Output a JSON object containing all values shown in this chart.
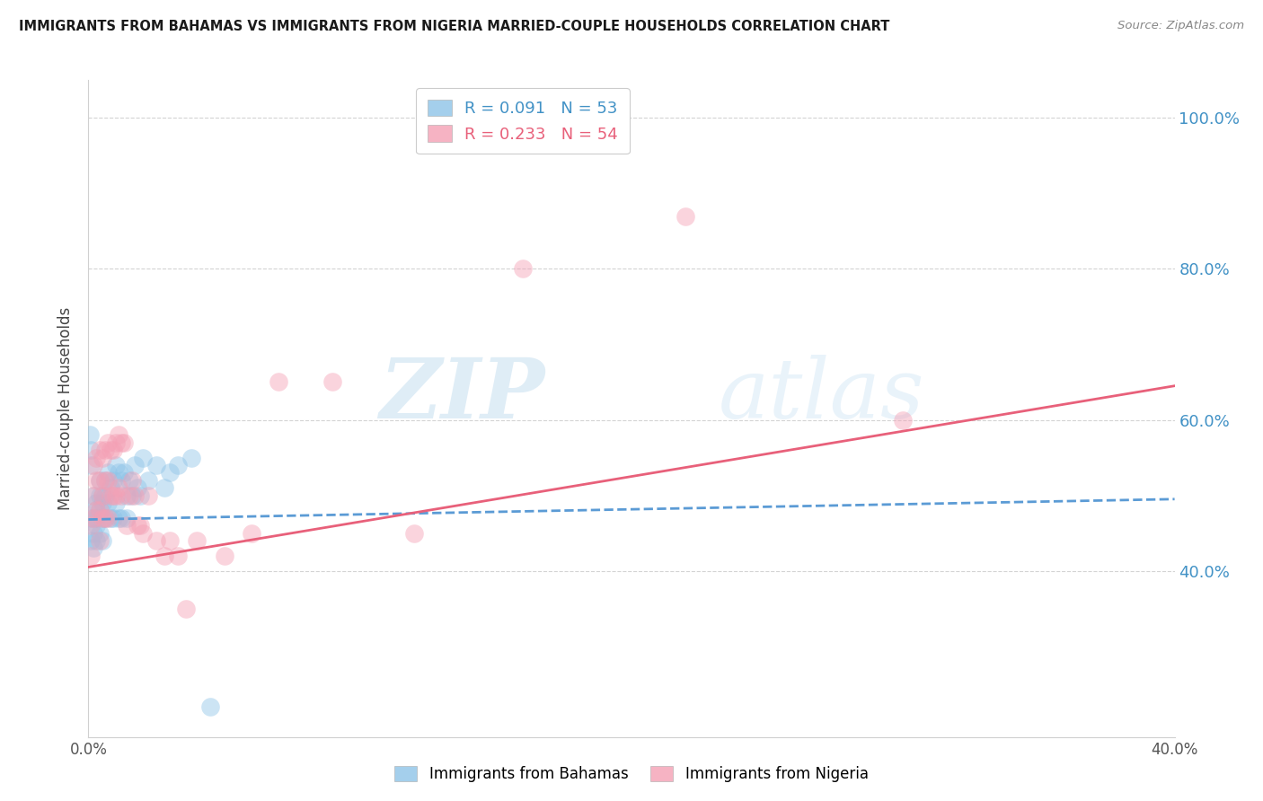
{
  "title": "IMMIGRANTS FROM BAHAMAS VS IMMIGRANTS FROM NIGERIA MARRIED-COUPLE HOUSEHOLDS CORRELATION CHART",
  "source": "Source: ZipAtlas.com",
  "ylabel": "Married-couple Households",
  "legend_label1": "Immigrants from Bahamas",
  "legend_label2": "Immigrants from Nigeria",
  "R1": 0.091,
  "N1": 53,
  "R2": 0.233,
  "N2": 54,
  "color_blue": "#8ec4e8",
  "color_pink": "#f4a0b5",
  "color_blue_line": "#5b9bd5",
  "color_pink_line": "#e8607a",
  "color_axis": "#4292c6",
  "xmin": 0.0,
  "xmax": 0.4,
  "ymin": 0.18,
  "ymax": 1.05,
  "yticks": [
    0.4,
    0.6,
    0.8,
    1.0
  ],
  "ytick_labels": [
    "40.0%",
    "60.0%",
    "80.0%",
    "100.0%"
  ],
  "bahamas_x": [
    0.0005,
    0.001,
    0.001,
    0.001,
    0.001,
    0.002,
    0.002,
    0.002,
    0.002,
    0.003,
    0.003,
    0.003,
    0.003,
    0.003,
    0.004,
    0.004,
    0.004,
    0.004,
    0.005,
    0.005,
    0.005,
    0.005,
    0.006,
    0.006,
    0.006,
    0.007,
    0.007,
    0.008,
    0.008,
    0.009,
    0.009,
    0.01,
    0.01,
    0.011,
    0.011,
    0.012,
    0.012,
    0.013,
    0.014,
    0.014,
    0.015,
    0.016,
    0.017,
    0.018,
    0.019,
    0.02,
    0.022,
    0.025,
    0.028,
    0.03,
    0.033,
    0.038,
    0.045
  ],
  "bahamas_y": [
    0.58,
    0.56,
    0.54,
    0.47,
    0.44,
    0.5,
    0.47,
    0.45,
    0.43,
    0.49,
    0.48,
    0.47,
    0.46,
    0.44,
    0.52,
    0.5,
    0.48,
    0.45,
    0.5,
    0.49,
    0.47,
    0.44,
    0.52,
    0.5,
    0.47,
    0.53,
    0.49,
    0.51,
    0.47,
    0.52,
    0.47,
    0.54,
    0.49,
    0.53,
    0.47,
    0.52,
    0.47,
    0.53,
    0.5,
    0.47,
    0.52,
    0.5,
    0.54,
    0.51,
    0.5,
    0.55,
    0.52,
    0.54,
    0.51,
    0.53,
    0.54,
    0.55,
    0.22
  ],
  "nigeria_x": [
    0.001,
    0.001,
    0.002,
    0.002,
    0.002,
    0.003,
    0.003,
    0.003,
    0.004,
    0.004,
    0.004,
    0.004,
    0.005,
    0.005,
    0.005,
    0.006,
    0.006,
    0.006,
    0.007,
    0.007,
    0.007,
    0.008,
    0.008,
    0.009,
    0.009,
    0.01,
    0.01,
    0.011,
    0.011,
    0.012,
    0.012,
    0.013,
    0.014,
    0.015,
    0.016,
    0.017,
    0.018,
    0.019,
    0.02,
    0.022,
    0.025,
    0.028,
    0.03,
    0.033,
    0.036,
    0.04,
    0.05,
    0.06,
    0.07,
    0.09,
    0.12,
    0.16,
    0.22,
    0.3
  ],
  "nigeria_y": [
    0.46,
    0.42,
    0.54,
    0.5,
    0.47,
    0.55,
    0.52,
    0.48,
    0.56,
    0.52,
    0.48,
    0.44,
    0.55,
    0.5,
    0.47,
    0.56,
    0.52,
    0.47,
    0.57,
    0.52,
    0.47,
    0.56,
    0.5,
    0.56,
    0.5,
    0.57,
    0.5,
    0.58,
    0.51,
    0.57,
    0.5,
    0.57,
    0.46,
    0.5,
    0.52,
    0.5,
    0.46,
    0.46,
    0.45,
    0.5,
    0.44,
    0.42,
    0.44,
    0.42,
    0.35,
    0.44,
    0.42,
    0.45,
    0.65,
    0.65,
    0.45,
    0.8,
    0.87,
    0.6
  ],
  "watermark_zip": "ZIP",
  "watermark_atlas": "atlas"
}
